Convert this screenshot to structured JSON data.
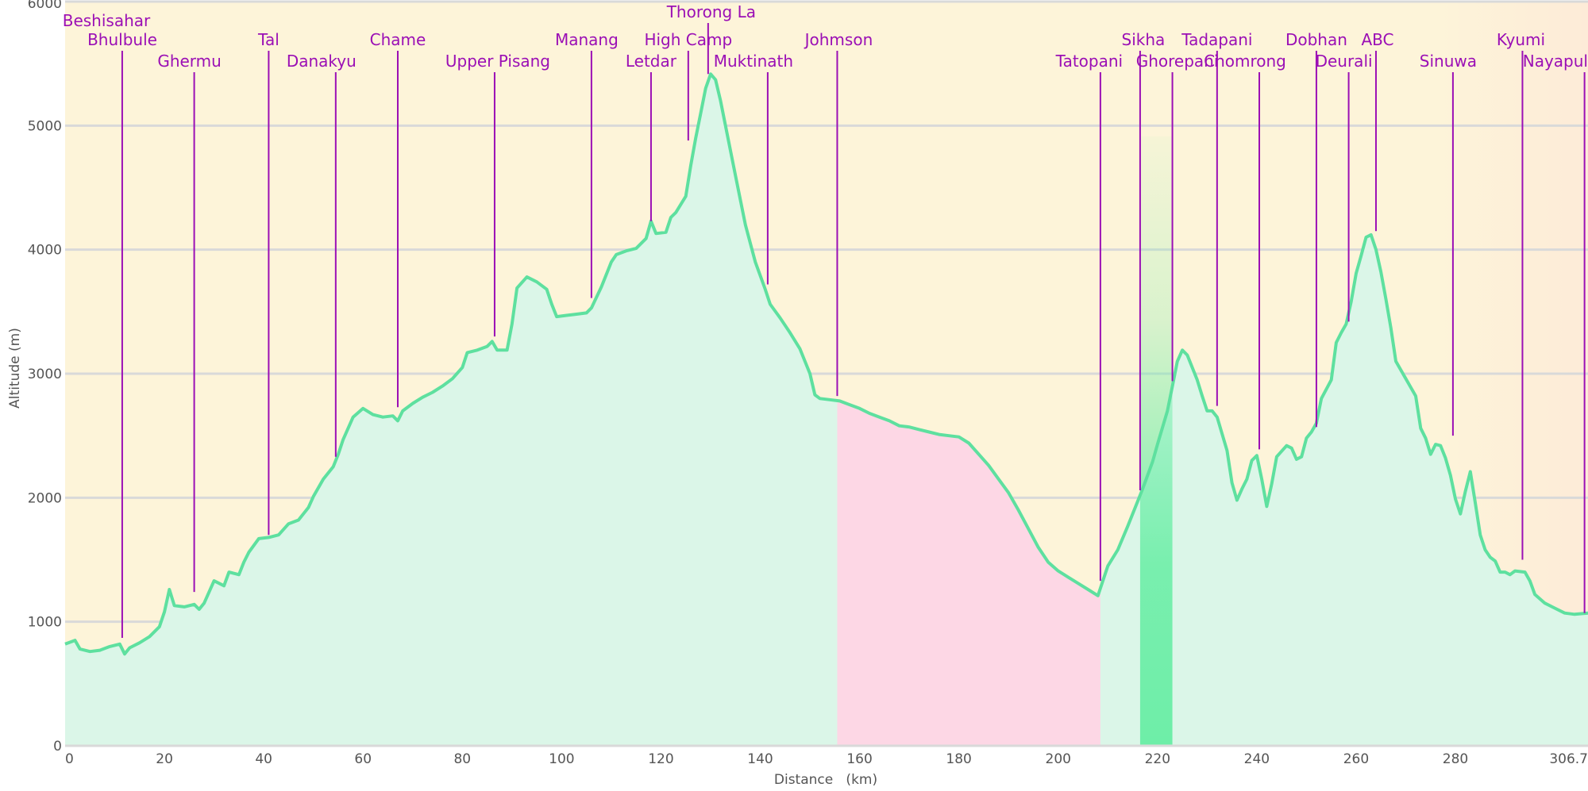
{
  "chart_data": {
    "type": "area",
    "title": "",
    "xlabel": "Distance   (km)",
    "ylabel": "Altitude (m)",
    "xlim": [
      0,
      306.7
    ],
    "ylim": [
      0,
      6000
    ],
    "x_ticks": [
      {
        "value": 0,
        "label": "0"
      },
      {
        "value": 20,
        "label": "20"
      },
      {
        "value": 40,
        "label": "40"
      },
      {
        "value": 60,
        "label": "60"
      },
      {
        "value": 80,
        "label": "80"
      },
      {
        "value": 100,
        "label": "100"
      },
      {
        "value": 120,
        "label": "120"
      },
      {
        "value": 140,
        "label": "140"
      },
      {
        "value": 160,
        "label": "160"
      },
      {
        "value": 180,
        "label": "180"
      },
      {
        "value": 200,
        "label": "200"
      },
      {
        "value": 220,
        "label": "220"
      },
      {
        "value": 240,
        "label": "240"
      },
      {
        "value": 260,
        "label": "260"
      },
      {
        "value": 280,
        "label": "280"
      },
      {
        "value": 306.7,
        "label": "306.7"
      }
    ],
    "y_ticks": [
      {
        "value": 0,
        "label": "0"
      },
      {
        "value": 1000,
        "label": "1000"
      },
      {
        "value": 2000,
        "label": "2000"
      },
      {
        "value": 3000,
        "label": "3000"
      },
      {
        "value": 4000,
        "label": "4000"
      },
      {
        "value": 5000,
        "label": "5000"
      },
      {
        "value": 6000,
        "label": "6000"
      }
    ],
    "grid": true,
    "colors": {
      "background": "#fdf4d9",
      "background_right": "#fdebd8",
      "line": "#5ee09f",
      "fill": "#dbf6e8",
      "transport_segment": "#fdd7e5",
      "highlight_segment": "#6eeea8",
      "marker": "#9b0fb5",
      "grid": "#d9d9d9"
    },
    "segments": [
      {
        "x_start": 155.5,
        "x_end": 208.5
      },
      {
        "x_start": 216.5,
        "x_end": 223.0
      }
    ],
    "series": [
      {
        "values": [
          [
            0,
            820
          ],
          [
            2,
            850
          ],
          [
            3,
            780
          ],
          [
            5,
            760
          ],
          [
            7,
            770
          ],
          [
            9,
            800
          ],
          [
            11,
            820
          ],
          [
            12,
            740
          ],
          [
            13,
            790
          ],
          [
            15,
            830
          ],
          [
            17,
            880
          ],
          [
            19,
            960
          ],
          [
            20,
            1080
          ],
          [
            21,
            1260
          ],
          [
            22,
            1130
          ],
          [
            24,
            1120
          ],
          [
            26,
            1140
          ],
          [
            27,
            1100
          ],
          [
            28,
            1150
          ],
          [
            30,
            1330
          ],
          [
            32,
            1290
          ],
          [
            33,
            1400
          ],
          [
            35,
            1380
          ],
          [
            36,
            1480
          ],
          [
            37,
            1560
          ],
          [
            39,
            1670
          ],
          [
            41,
            1680
          ],
          [
            43,
            1700
          ],
          [
            45,
            1790
          ],
          [
            47,
            1820
          ],
          [
            49,
            1920
          ],
          [
            50,
            2010
          ],
          [
            52,
            2150
          ],
          [
            54,
            2250
          ],
          [
            55,
            2350
          ],
          [
            56,
            2470
          ],
          [
            58,
            2650
          ],
          [
            60,
            2720
          ],
          [
            62,
            2670
          ],
          [
            64,
            2650
          ],
          [
            66,
            2660
          ],
          [
            67,
            2620
          ],
          [
            68,
            2700
          ],
          [
            70,
            2760
          ],
          [
            72,
            2810
          ],
          [
            74,
            2850
          ],
          [
            76,
            2900
          ],
          [
            78,
            2960
          ],
          [
            80,
            3050
          ],
          [
            81,
            3170
          ],
          [
            83,
            3190
          ],
          [
            85,
            3220
          ],
          [
            86,
            3260
          ],
          [
            87,
            3190
          ],
          [
            89,
            3190
          ],
          [
            90,
            3400
          ],
          [
            91,
            3690
          ],
          [
            93,
            3780
          ],
          [
            95,
            3740
          ],
          [
            97,
            3680
          ],
          [
            98,
            3560
          ],
          [
            99,
            3460
          ],
          [
            101,
            3470
          ],
          [
            103,
            3480
          ],
          [
            105,
            3490
          ],
          [
            106,
            3530
          ],
          [
            108,
            3700
          ],
          [
            110,
            3900
          ],
          [
            111,
            3960
          ],
          [
            113,
            3990
          ],
          [
            115,
            4010
          ],
          [
            117,
            4090
          ],
          [
            118,
            4230
          ],
          [
            119,
            4130
          ],
          [
            121,
            4140
          ],
          [
            122,
            4260
          ],
          [
            123,
            4300
          ],
          [
            125,
            4430
          ],
          [
            126,
            4680
          ],
          [
            127,
            4900
          ],
          [
            128,
            5100
          ],
          [
            129,
            5300
          ],
          [
            130,
            5416
          ],
          [
            131,
            5370
          ],
          [
            132,
            5200
          ],
          [
            133,
            5000
          ],
          [
            135,
            4600
          ],
          [
            137,
            4200
          ],
          [
            139,
            3900
          ],
          [
            141,
            3680
          ],
          [
            142,
            3560
          ],
          [
            144,
            3450
          ],
          [
            146,
            3330
          ],
          [
            148,
            3200
          ],
          [
            150,
            3000
          ],
          [
            151,
            2830
          ],
          [
            152,
            2800
          ],
          [
            154,
            2790
          ],
          [
            156,
            2780
          ],
          [
            158,
            2750
          ],
          [
            160,
            2720
          ],
          [
            162,
            2680
          ],
          [
            164,
            2650
          ],
          [
            166,
            2620
          ],
          [
            168,
            2580
          ],
          [
            170,
            2570
          ],
          [
            172,
            2550
          ],
          [
            174,
            2530
          ],
          [
            176,
            2510
          ],
          [
            178,
            2500
          ],
          [
            180,
            2490
          ],
          [
            182,
            2440
          ],
          [
            184,
            2350
          ],
          [
            186,
            2260
          ],
          [
            188,
            2150
          ],
          [
            190,
            2040
          ],
          [
            192,
            1900
          ],
          [
            194,
            1750
          ],
          [
            196,
            1600
          ],
          [
            198,
            1480
          ],
          [
            200,
            1410
          ],
          [
            202,
            1360
          ],
          [
            204,
            1310
          ],
          [
            206,
            1260
          ],
          [
            208,
            1210
          ],
          [
            210,
            1450
          ],
          [
            212,
            1580
          ],
          [
            214,
            1770
          ],
          [
            216,
            1970
          ],
          [
            217,
            2070
          ],
          [
            219,
            2290
          ],
          [
            220,
            2430
          ],
          [
            222,
            2700
          ],
          [
            223,
            2900
          ],
          [
            224,
            3100
          ],
          [
            225,
            3190
          ],
          [
            226,
            3150
          ],
          [
            228,
            2950
          ],
          [
            229,
            2820
          ],
          [
            230,
            2700
          ],
          [
            231,
            2700
          ],
          [
            232,
            2650
          ],
          [
            234,
            2380
          ],
          [
            235,
            2120
          ],
          [
            236,
            1980
          ],
          [
            237,
            2070
          ],
          [
            238,
            2150
          ],
          [
            239,
            2300
          ],
          [
            240,
            2340
          ],
          [
            241,
            2150
          ],
          [
            242,
            1930
          ],
          [
            243,
            2110
          ],
          [
            244,
            2330
          ],
          [
            246,
            2420
          ],
          [
            247,
            2400
          ],
          [
            248,
            2310
          ],
          [
            249,
            2330
          ],
          [
            250,
            2480
          ],
          [
            251,
            2530
          ],
          [
            252,
            2600
          ],
          [
            253,
            2800
          ],
          [
            255,
            2950
          ],
          [
            256,
            3250
          ],
          [
            257,
            3330
          ],
          [
            258,
            3400
          ],
          [
            259,
            3580
          ],
          [
            260,
            3810
          ],
          [
            261,
            3950
          ],
          [
            262,
            4100
          ],
          [
            263,
            4120
          ],
          [
            264,
            4000
          ],
          [
            265,
            3820
          ],
          [
            266,
            3600
          ],
          [
            267,
            3370
          ],
          [
            268,
            3100
          ],
          [
            270,
            2960
          ],
          [
            272,
            2820
          ],
          [
            273,
            2560
          ],
          [
            274,
            2480
          ],
          [
            275,
            2350
          ],
          [
            276,
            2430
          ],
          [
            277,
            2420
          ],
          [
            278,
            2320
          ],
          [
            279,
            2180
          ],
          [
            280,
            1990
          ],
          [
            281,
            1870
          ],
          [
            282,
            2050
          ],
          [
            283,
            2210
          ],
          [
            284,
            1960
          ],
          [
            285,
            1700
          ],
          [
            286,
            1580
          ],
          [
            287,
            1520
          ],
          [
            288,
            1490
          ],
          [
            289,
            1400
          ],
          [
            290,
            1400
          ],
          [
            291,
            1380
          ],
          [
            292,
            1410
          ],
          [
            294,
            1400
          ],
          [
            295,
            1330
          ],
          [
            296,
            1220
          ],
          [
            298,
            1150
          ],
          [
            300,
            1110
          ],
          [
            302,
            1070
          ],
          [
            304,
            1060
          ],
          [
            306.7,
            1070
          ]
        ]
      }
    ],
    "annotations": [
      {
        "label": "Beshisahar",
        "x": 11.5,
        "y": 870
      },
      {
        "label": "Bhulbule",
        "x": 11.5,
        "y": 870
      },
      {
        "label": "Ghermu",
        "x": 26.0,
        "y": 1240
      },
      {
        "label": "Tal",
        "x": 41.0,
        "y": 1700
      },
      {
        "label": "Danakyu",
        "x": 54.5,
        "y": 2330
      },
      {
        "label": "Chame",
        "x": 67.0,
        "y": 2730
      },
      {
        "label": "Upper Pisang",
        "x": 86.5,
        "y": 3300
      },
      {
        "label": "Manang",
        "x": 106.0,
        "y": 3610
      },
      {
        "label": "Letdar",
        "x": 118.0,
        "y": 4230
      },
      {
        "label": "High Camp",
        "x": 125.5,
        "y": 4880
      },
      {
        "label": "Thorong La",
        "x": 129.5,
        "y": 5416
      },
      {
        "label": "Muktinath",
        "x": 141.5,
        "y": 3720
      },
      {
        "label": "Johmson",
        "x": 155.5,
        "y": 2820
      },
      {
        "label": "Tatopani",
        "x": 208.5,
        "y": 1330
      },
      {
        "label": "Sikha",
        "x": 216.5,
        "y": 2060
      },
      {
        "label": "Ghorepani",
        "x": 223.0,
        "y": 2940
      },
      {
        "label": "Tadapani",
        "x": 232.0,
        "y": 2740
      },
      {
        "label": "Chomrong",
        "x": 240.5,
        "y": 2390
      },
      {
        "label": "Dobhan",
        "x": 252.0,
        "y": 2570
      },
      {
        "label": "Deurali",
        "x": 258.5,
        "y": 3420
      },
      {
        "label": "ABC",
        "x": 264.0,
        "y": 4150
      },
      {
        "label": "Sinuwa",
        "x": 279.5,
        "y": 2500
      },
      {
        "label": "Kyumi",
        "x": 293.5,
        "y": 1500
      },
      {
        "label": "Nayapul",
        "x": 306.0,
        "y": 1070
      }
    ]
  }
}
